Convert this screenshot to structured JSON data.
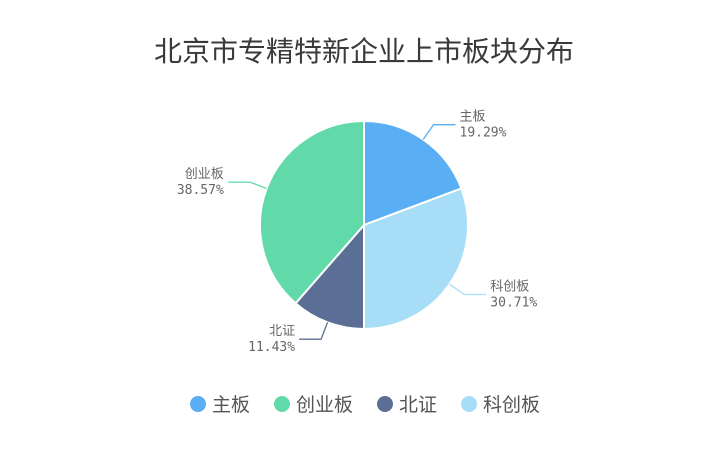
{
  "chart_data": {
    "type": "pie",
    "title": "北京市专精特新企业上市板块分布",
    "slices": [
      {
        "name": "主板",
        "percent": 19.29,
        "percent_label": "19.29%",
        "color": "#5aaef4"
      },
      {
        "name": "科创板",
        "percent": 30.71,
        "percent_label": "30.71%",
        "color": "#a8ddf8"
      },
      {
        "name": "北证",
        "percent": 11.43,
        "percent_label": "11.43%",
        "color": "#5b6e96"
      },
      {
        "name": "创业板",
        "percent": 38.57,
        "percent_label": "38.57%",
        "color": "#62d9a9"
      }
    ],
    "legend": {
      "placement": "bottom",
      "items": [
        "主板",
        "创业板",
        "北证",
        "科创板"
      ]
    }
  }
}
